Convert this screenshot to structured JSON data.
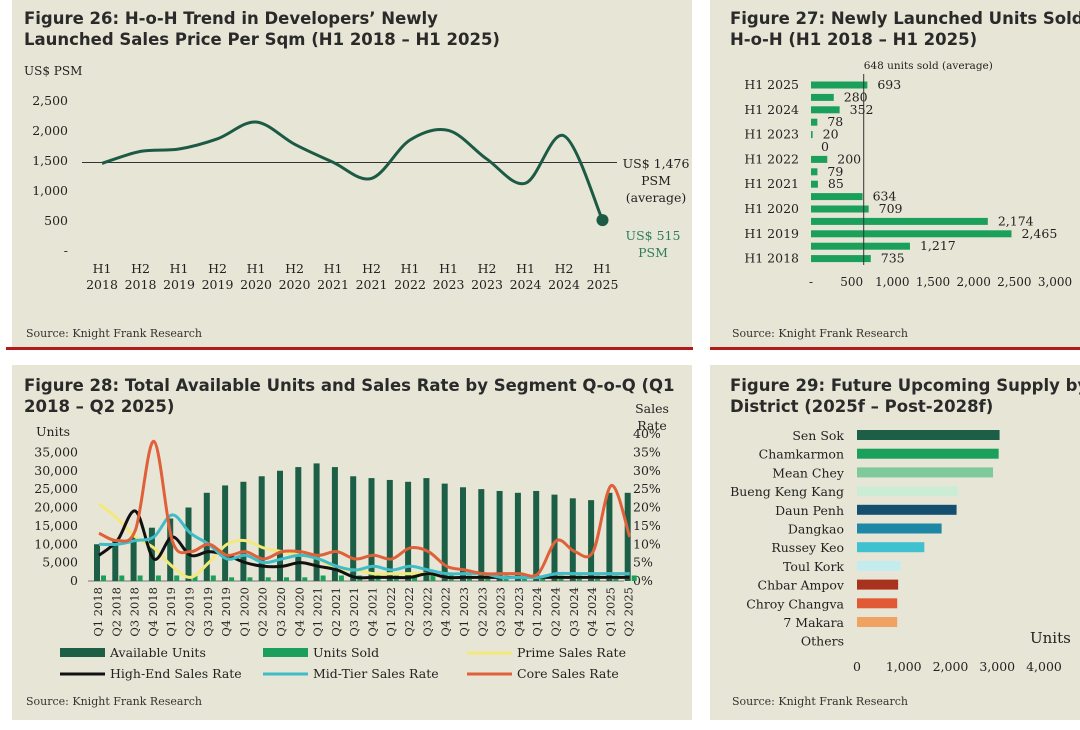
{
  "source": "Source: Knight Frank Research",
  "fig26": {
    "title_line1": "Figure 26: H-o-H Trend in Developers’ Newly",
    "title_line2": "Launched Sales Price Per Sqm (H1 2018 – H1 2025)",
    "colors": {
      "line": "#1c5a45",
      "avg": "#333333",
      "annot": "#2e7d57"
    },
    "chart_data": {
      "type": "line",
      "ylabel": "US$ PSM",
      "ylim": [
        0,
        2500
      ],
      "yticks": [
        "2,500",
        "2,000",
        "1,500",
        "1,000",
        "500",
        "-"
      ],
      "ytick_values": [
        2500,
        2000,
        1500,
        1000,
        500,
        0
      ],
      "categories": [
        [
          "H1",
          "2018"
        ],
        [
          "H2",
          "2018"
        ],
        [
          "H1",
          "2019"
        ],
        [
          "H2",
          "2019"
        ],
        [
          "H1",
          "2020"
        ],
        [
          "H2",
          "2020"
        ],
        [
          "H1",
          "2021"
        ],
        [
          "H2",
          "2021"
        ],
        [
          "H1",
          "2022"
        ],
        [
          "H1",
          "2023"
        ],
        [
          "H2",
          "2023"
        ],
        [
          "H1",
          "2024"
        ],
        [
          "H2",
          "2024"
        ],
        [
          "H1",
          "2025"
        ]
      ],
      "values": [
        1460,
        1660,
        1700,
        1870,
        2150,
        1780,
        1480,
        1210,
        1850,
        2010,
        1530,
        1130,
        1920,
        515
      ],
      "average": 1476,
      "average_label": [
        "US$ 1,476",
        "PSM",
        "(average)"
      ],
      "last_label": [
        "US$ 515",
        "PSM"
      ]
    }
  },
  "fig27": {
    "title_line1": "Figure 27: Newly Launched Units Sold",
    "title_line2": "H-o-H (H1 2018 – H1 2025)",
    "colors": {
      "bar": "#1aa05a",
      "avg": "#333333"
    },
    "chart_data": {
      "type": "bar",
      "orientation": "horizontal",
      "average": 648,
      "average_label": "648 units sold (average)",
      "xlim": [
        0,
        3000
      ],
      "xticks": [
        "-",
        "500",
        "1,000",
        "1,500",
        "2,000",
        "2,500",
        "3,000"
      ],
      "xtick_values": [
        0,
        500,
        1000,
        1500,
        2000,
        2500,
        3000
      ],
      "ylabels": [
        "H1 2025",
        "H1 2024",
        "H1 2023",
        "H1 2022",
        "H1 2021",
        "H1 2020",
        "H1 2019",
        "H1 2018"
      ],
      "values": [
        693,
        280,
        352,
        78,
        20,
        0,
        200,
        79,
        85,
        634,
        709,
        2174,
        2465,
        1217,
        735
      ],
      "value_labels": [
        "693",
        "280",
        "352",
        "78",
        "20",
        "0",
        "200",
        "79",
        "85",
        "634",
        "709",
        "2,174",
        "2,465",
        "1,217",
        "735"
      ]
    }
  },
  "fig28": {
    "title_line1": "Figure 28: Total Available Units and Sales Rate by Segment Q-o-Q (Q1",
    "title_line2": "2018 – Q2 2025)",
    "chart_data": {
      "type": "bar",
      "ylabel": "Units",
      "y2label": [
        "Sales",
        "Rate"
      ],
      "ylim": [
        0,
        40000
      ],
      "y2lim": [
        0,
        40
      ],
      "yticks": [
        "35,000",
        "30,000",
        "25,000",
        "20,000",
        "15,000",
        "10,000",
        "5,000",
        "0"
      ],
      "ytick_values": [
        35000,
        30000,
        25000,
        20000,
        15000,
        10000,
        5000,
        0
      ],
      "y2ticks": [
        "40%",
        "35%",
        "30%",
        "25%",
        "20%",
        "15%",
        "10%",
        "5%",
        "0%"
      ],
      "y2tick_values": [
        40,
        35,
        30,
        25,
        20,
        15,
        10,
        5,
        0
      ],
      "categories": [
        "Q1 2018",
        "Q2 2018",
        "Q3 2018",
        "Q4 2018",
        "Q1 2019",
        "Q2 2019",
        "Q3 2019",
        "Q4 2019",
        "Q1 2020",
        "Q2 2020",
        "Q3 2020",
        "Q4 2020",
        "Q1 2021",
        "Q2 2021",
        "Q3 2021",
        "Q4 2021",
        "Q1 2022",
        "Q2 2022",
        "Q3 2022",
        "Q4 2022",
        "Q1 2023",
        "Q2 2023",
        "Q3 2023",
        "Q4 2023",
        "Q1 2024",
        "Q2 2024",
        "Q3 2024",
        "Q4 2024",
        "Q1 2025",
        "Q2 2025"
      ],
      "series": [
        {
          "name": "Available Units",
          "kind": "bar",
          "color": "#1c5e46",
          "values": [
            10000,
            11000,
            12000,
            14500,
            17000,
            20000,
            24000,
            26000,
            27000,
            28500,
            30000,
            31000,
            32000,
            31000,
            28500,
            28000,
            27500,
            27000,
            28000,
            26500,
            25500,
            25000,
            24500,
            24000,
            24500,
            23500,
            22500,
            22000,
            24000,
            24000
          ]
        },
        {
          "name": "Units Sold",
          "kind": "bar",
          "color": "#1aa05a",
          "values": [
            1500,
            1500,
            1500,
            1500,
            1500,
            1500,
            1500,
            1000,
            1000,
            1000,
            1000,
            1000,
            1500,
            1500,
            1500,
            1500,
            1500,
            1500,
            1500,
            1500,
            1500,
            1500,
            1500,
            1500,
            1500,
            1500,
            1500,
            1500,
            1500,
            1500
          ]
        },
        {
          "name": "Prime Sales Rate",
          "kind": "line",
          "color": "#f3e97a",
          "values": [
            21,
            17,
            12,
            9,
            4,
            1,
            5,
            10,
            11,
            9,
            8,
            7,
            6,
            3,
            3,
            2,
            2,
            2,
            2,
            1,
            1,
            1,
            1,
            1,
            1,
            1,
            1,
            1,
            1,
            1
          ]
        },
        {
          "name": "High-End Sales Rate",
          "kind": "line",
          "color": "#111111",
          "values": [
            7,
            11,
            19,
            6,
            12,
            7,
            8,
            7,
            5,
            4,
            4,
            5,
            4,
            3,
            1,
            1,
            1,
            1,
            2,
            1,
            1,
            1,
            1,
            1,
            1,
            1,
            1,
            1,
            1,
            1
          ]
        },
        {
          "name": "Mid-Tier Sales Rate",
          "kind": "line",
          "color": "#3fbcc8",
          "values": [
            10,
            10,
            11,
            12,
            18,
            13,
            10,
            6,
            7,
            5,
            6,
            7,
            6,
            4,
            3,
            4,
            3,
            4,
            3,
            2,
            2,
            2,
            1,
            1,
            1,
            2,
            2,
            2,
            2,
            2
          ]
        },
        {
          "name": "Core Sales Rate",
          "kind": "line",
          "color": "#e0603a",
          "values": [
            13,
            11,
            14,
            38,
            11,
            8,
            10,
            7,
            8,
            6,
            8,
            8,
            7,
            8,
            6,
            7,
            6,
            9,
            8,
            4,
            3,
            2,
            2,
            2,
            2,
            11,
            8,
            8,
            26,
            12
          ]
        }
      ]
    }
  },
  "fig29": {
    "title_line1": "Figure 29: Future Upcoming Supply by",
    "title_line2": "District (2025f – Post-2028f)",
    "chart_data": {
      "type": "bar",
      "orientation": "horizontal",
      "xlabel": "Units",
      "xlim": [
        0,
        4000
      ],
      "xticks": [
        "0",
        "1,000",
        "2,000",
        "3,000",
        "4,000"
      ],
      "xtick_values": [
        0,
        1000,
        2000,
        3000,
        4000
      ],
      "categories": [
        "Sen Sok",
        "Chamkarmon",
        "Mean Chey",
        "Bueng Keng Kang",
        "Daun Penh",
        "Dangkao",
        "Russey Keo",
        "Toul Kork",
        "Chbar Ampov",
        "Chroy Changva",
        "7 Makara",
        "Others"
      ],
      "values": [
        3050,
        3030,
        2910,
        2160,
        2130,
        1810,
        1440,
        930,
        880,
        860,
        860,
        0
      ],
      "colors": [
        "#1c5e46",
        "#1aa05a",
        "#7fc99a",
        "#cdecd6",
        "#154f70",
        "#1f87a6",
        "#3fc1cf",
        "#c4ecee",
        "#a8321d",
        "#e15a35",
        "#f0a262",
        "#e7e6d6"
      ]
    }
  }
}
